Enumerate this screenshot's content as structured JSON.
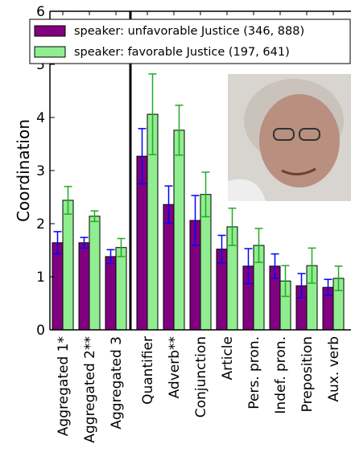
{
  "chart_data": {
    "type": "bar",
    "y_label": "Coordination",
    "categories": [
      "Aggregated 1*",
      "Aggregated 2**",
      "Aggregated 3",
      "Quantifier",
      "Adverb**",
      "Conjunction",
      "Article",
      "Pers. pron.",
      "Indef. pron.",
      "Preposition",
      "Aux. verb"
    ],
    "series": [
      {
        "name": "speaker: unfavorable Justice (346, 888)",
        "color": "#800080",
        "error_color": "#0000ff",
        "values": [
          1.64,
          1.64,
          1.38,
          3.27,
          2.36,
          2.06,
          1.52,
          1.2,
          1.2,
          0.83,
          0.8
        ],
        "errors": [
          0.21,
          0.1,
          0.13,
          0.52,
          0.35,
          0.47,
          0.26,
          0.33,
          0.23,
          0.23,
          0.15
        ]
      },
      {
        "name": "speaker: favorable Justice (197, 641)",
        "color": "#90ee90",
        "error_color": "#22aa22",
        "values": [
          2.44,
          2.14,
          1.55,
          4.06,
          3.76,
          2.55,
          1.94,
          1.59,
          0.92,
          1.21,
          0.97
        ],
        "errors": [
          0.26,
          0.1,
          0.17,
          0.76,
          0.47,
          0.42,
          0.35,
          0.32,
          0.29,
          0.33,
          0.23
        ]
      }
    ],
    "ylim": [
      0,
      6
    ],
    "yticks": [
      0,
      1,
      2,
      3,
      4,
      5,
      6
    ]
  }
}
